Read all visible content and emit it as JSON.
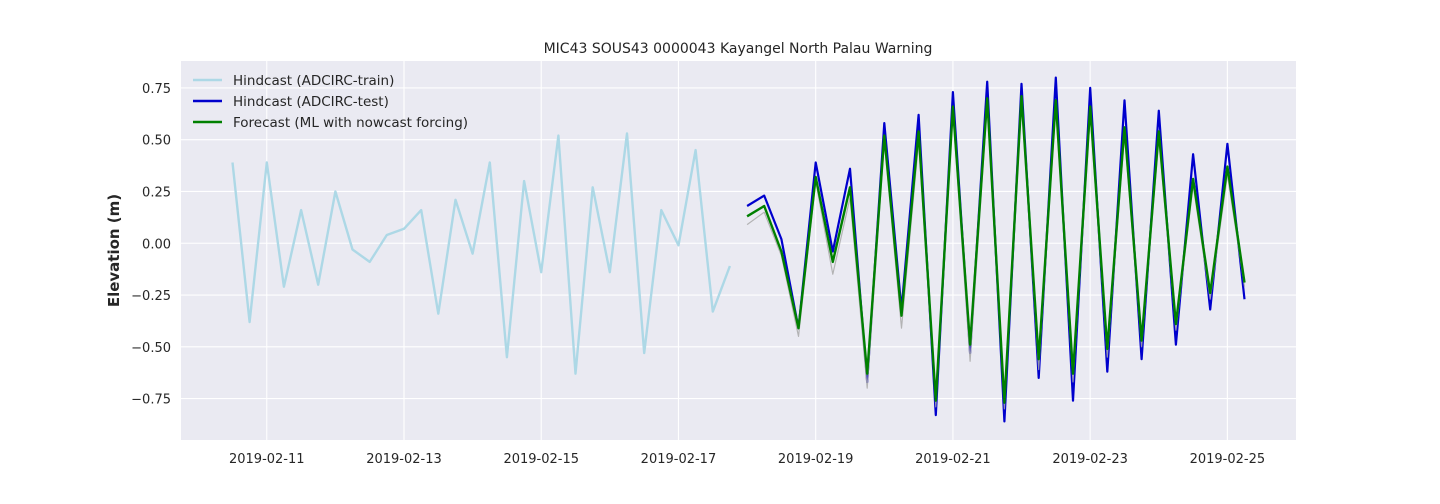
{
  "chart_data": {
    "type": "line",
    "title": "MIC43 SOUS43 0000043 Kayangel North Palau Warning",
    "xlabel": "",
    "ylabel": "Elevation (m)",
    "xlim": [
      "2019-02-09T18:00",
      "2019-02-26T00:00"
    ],
    "ylim": [
      -0.95,
      0.88
    ],
    "x_ticks": [
      "2019-02-11",
      "2019-02-13",
      "2019-02-15",
      "2019-02-17",
      "2019-02-19",
      "2019-02-21",
      "2019-02-23",
      "2019-02-25"
    ],
    "y_ticks": [
      {
        "value": 0.75,
        "label": "0.75"
      },
      {
        "value": 0.5,
        "label": "0.50"
      },
      {
        "value": 0.25,
        "label": "0.25"
      },
      {
        "value": 0.0,
        "label": "0.00"
      },
      {
        "value": -0.25,
        "label": "−0.25"
      },
      {
        "value": -0.5,
        "label": "−0.50"
      },
      {
        "value": -0.75,
        "label": "−0.75"
      }
    ],
    "grid": true,
    "legend_position": "top-left",
    "series": [
      {
        "name": "Hindcast (ADCIRC-train)",
        "color": "#add8e6",
        "x": [
          "2019-02-10T12:00",
          "2019-02-10T18:00",
          "2019-02-11T00:00",
          "2019-02-11T06:00",
          "2019-02-11T12:00",
          "2019-02-11T18:00",
          "2019-02-12T00:00",
          "2019-02-12T06:00",
          "2019-02-12T12:00",
          "2019-02-12T18:00",
          "2019-02-13T00:00",
          "2019-02-13T06:00",
          "2019-02-13T12:00",
          "2019-02-13T18:00",
          "2019-02-14T00:00",
          "2019-02-14T06:00",
          "2019-02-14T12:00",
          "2019-02-14T18:00",
          "2019-02-15T00:00",
          "2019-02-15T06:00",
          "2019-02-15T12:00",
          "2019-02-15T18:00",
          "2019-02-16T00:00",
          "2019-02-16T06:00",
          "2019-02-16T12:00",
          "2019-02-16T18:00",
          "2019-02-17T00:00",
          "2019-02-17T06:00",
          "2019-02-17T12:00",
          "2019-02-17T18:00"
        ],
        "values": [
          0.39,
          -0.38,
          0.39,
          -0.21,
          0.16,
          -0.2,
          0.25,
          -0.03,
          -0.09,
          0.04,
          0.07,
          0.16,
          -0.34,
          0.21,
          -0.05,
          0.39,
          -0.55,
          0.3,
          -0.14,
          0.52,
          -0.63,
          0.27,
          -0.14,
          0.53,
          -0.53,
          0.16,
          -0.01,
          0.45,
          -0.33,
          -0.11
        ]
      },
      {
        "name": "Hindcast (ADCIRC-test)",
        "color": "#0000cd",
        "x": [
          "2019-02-18T00:00",
          "2019-02-18T06:00",
          "2019-02-18T12:00",
          "2019-02-18T18:00",
          "2019-02-19T00:00",
          "2019-02-19T06:00",
          "2019-02-19T12:00",
          "2019-02-19T18:00",
          "2019-02-20T00:00",
          "2019-02-20T06:00",
          "2019-02-20T12:00",
          "2019-02-20T18:00",
          "2019-02-21T00:00",
          "2019-02-21T06:00",
          "2019-02-21T12:00",
          "2019-02-21T18:00",
          "2019-02-22T00:00",
          "2019-02-22T06:00",
          "2019-02-22T12:00",
          "2019-02-22T18:00",
          "2019-02-23T00:00",
          "2019-02-23T06:00",
          "2019-02-23T12:00",
          "2019-02-23T18:00",
          "2019-02-24T00:00",
          "2019-02-24T06:00",
          "2019-02-24T12:00",
          "2019-02-24T18:00",
          "2019-02-25T00:00",
          "2019-02-25T06:00"
        ],
        "values": [
          0.18,
          0.23,
          0.02,
          -0.41,
          0.39,
          -0.04,
          0.36,
          -0.67,
          0.58,
          -0.32,
          0.62,
          -0.83,
          0.73,
          -0.53,
          0.78,
          -0.86,
          0.77,
          -0.65,
          0.8,
          -0.76,
          0.75,
          -0.62,
          0.69,
          -0.56,
          0.64,
          -0.49,
          0.43,
          -0.32,
          0.48,
          -0.27
        ]
      },
      {
        "name": "Forecast (ML with nowcast forcing)",
        "color": "#008000",
        "x": [
          "2019-02-18T00:00",
          "2019-02-18T06:00",
          "2019-02-18T12:00",
          "2019-02-18T18:00",
          "2019-02-19T00:00",
          "2019-02-19T06:00",
          "2019-02-19T12:00",
          "2019-02-19T18:00",
          "2019-02-20T00:00",
          "2019-02-20T06:00",
          "2019-02-20T12:00",
          "2019-02-20T18:00",
          "2019-02-21T00:00",
          "2019-02-21T06:00",
          "2019-02-21T12:00",
          "2019-02-21T18:00",
          "2019-02-22T00:00",
          "2019-02-22T06:00",
          "2019-02-22T12:00",
          "2019-02-22T18:00",
          "2019-02-23T00:00",
          "2019-02-23T06:00",
          "2019-02-23T12:00",
          "2019-02-23T18:00",
          "2019-02-24T00:00",
          "2019-02-24T06:00",
          "2019-02-24T12:00",
          "2019-02-24T18:00",
          "2019-02-25T00:00",
          "2019-02-25T06:00"
        ],
        "values": [
          0.13,
          0.18,
          -0.04,
          -0.41,
          0.32,
          -0.09,
          0.27,
          -0.63,
          0.52,
          -0.35,
          0.54,
          -0.76,
          0.66,
          -0.49,
          0.7,
          -0.77,
          0.71,
          -0.56,
          0.69,
          -0.63,
          0.66,
          -0.51,
          0.56,
          -0.47,
          0.54,
          -0.39,
          0.31,
          -0.24,
          0.37,
          -0.19
        ]
      },
      {
        "color": "#a9a9a9",
        "x": [
          "2019-02-18T00:00",
          "2019-02-18T06:00",
          "2019-02-18T12:00",
          "2019-02-18T18:00",
          "2019-02-19T00:00",
          "2019-02-19T06:00",
          "2019-02-19T12:00",
          "2019-02-19T18:00",
          "2019-02-20T00:00",
          "2019-02-20T06:00",
          "2019-02-20T12:00",
          "2019-02-20T18:00",
          "2019-02-21T00:00",
          "2019-02-21T06:00",
          "2019-02-21T12:00",
          "2019-02-21T18:00",
          "2019-02-22T00:00",
          "2019-02-22T06:00",
          "2019-02-22T12:00",
          "2019-02-22T18:00",
          "2019-02-23T00:00",
          "2019-02-23T06:00",
          "2019-02-23T12:00",
          "2019-02-23T18:00",
          "2019-02-24T00:00",
          "2019-02-24T06:00",
          "2019-02-24T12:00",
          "2019-02-24T18:00",
          "2019-02-25T00:00",
          "2019-02-25T06:00"
        ],
        "values": [
          0.09,
          0.15,
          -0.06,
          -0.45,
          0.3,
          -0.15,
          0.22,
          -0.7,
          0.49,
          -0.41,
          0.49,
          -0.79,
          0.63,
          -0.57,
          0.67,
          -0.8,
          0.68,
          -0.61,
          0.66,
          -0.67,
          0.62,
          -0.55,
          0.52,
          -0.5,
          0.5,
          -0.42,
          0.28,
          -0.27,
          0.33,
          -0.21
        ]
      }
    ]
  }
}
